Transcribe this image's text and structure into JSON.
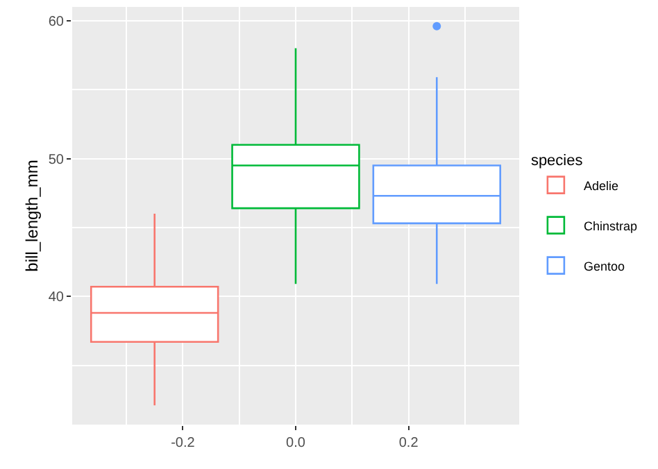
{
  "chart_data": {
    "type": "box",
    "ylabel": "bill_length_mm",
    "legend_title": "species",
    "legend": "right",
    "grid": true,
    "xlim": [
      -0.396,
      0.396
    ],
    "xticks": [
      -0.2,
      {
        "value": 0.0,
        "label": "0.0"
      },
      0.2
    ],
    "ylim": [
      30.7,
      61.0
    ],
    "yticks": [
      40,
      50,
      60
    ],
    "series": [
      {
        "name": "Adelie",
        "color": "#f8766d",
        "x": [
          -0.25
        ],
        "boxes": [
          {
            "low": 32.1,
            "q1": 36.7,
            "median": 38.8,
            "q3": 40.7,
            "high": 46.0
          }
        ]
      },
      {
        "name": "Chinstrap",
        "color": "#00ba38",
        "x": [
          0.0
        ],
        "boxes": [
          {
            "low": 40.9,
            "q1": 46.4,
            "median": 49.5,
            "q3": 51.0,
            "high": 58.0
          }
        ]
      },
      {
        "name": "Gentoo",
        "color": "#619cff",
        "x": [
          0.25
        ],
        "boxes": [
          {
            "low": 40.9,
            "q1": 45.3,
            "median": 47.3,
            "q3": 49.5,
            "high": 55.9,
            "outliers": [
              59.6
            ]
          }
        ]
      }
    ]
  }
}
